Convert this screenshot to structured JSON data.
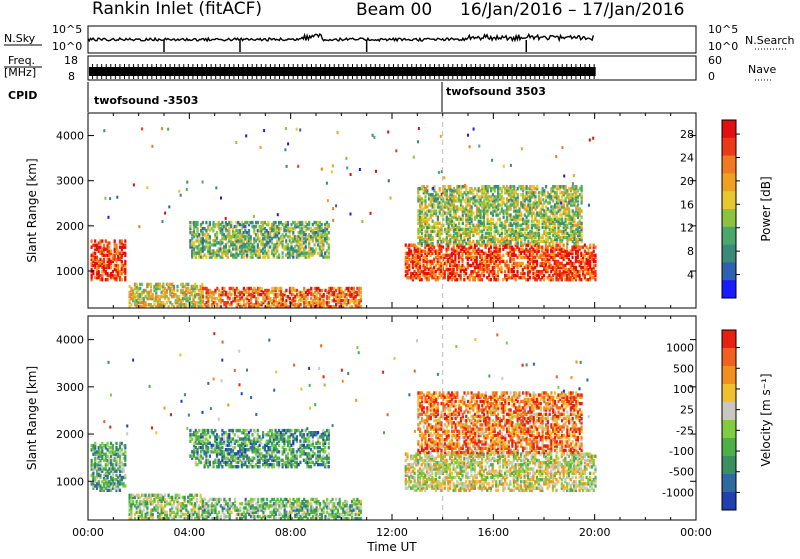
{
  "header": {
    "title": "Rankin Inlet (fitACF)",
    "beam": "Beam 00",
    "date_range": "16/Jan/2016 – 17/Jan/2016"
  },
  "noise_panel": {
    "left_label": "N.Sky",
    "left_ticks": [
      "10^5",
      "10^0"
    ],
    "right_ticks": [
      "10^5",
      "10^0"
    ],
    "right_label": "N.Search"
  },
  "freq_panel": {
    "left_label_line1": "Freq.",
    "left_label_line2": "[MHz]",
    "left_ticks": [
      "18",
      "8"
    ],
    "right_ticks": [
      "60",
      "0"
    ],
    "right_label": "Nave"
  },
  "cpid": {
    "label": "CPID",
    "segments": [
      {
        "name": "twofsound -3503",
        "start_hour": 0
      },
      {
        "name": "twofsound 3503",
        "start_hour": 14
      }
    ]
  },
  "chart_data": [
    {
      "type": "heatmap",
      "name": "Power",
      "ylabel": "Slant Range [km]",
      "xlabel": "Time UT",
      "x_ticks": [
        "00:00",
        "04:00",
        "08:00",
        "12:00",
        "16:00",
        "20:00",
        "00:00"
      ],
      "xlim_hours": [
        0,
        24
      ],
      "ylim": [
        180,
        4500
      ],
      "y_ticks": [
        1000,
        2000,
        3000,
        4000
      ],
      "colorbar_label": "Power [dB]",
      "colorbar_ticks": [
        "4",
        "8",
        "12",
        "16",
        "20",
        "24",
        "28"
      ],
      "colorbar_colors": [
        "#1a1aff",
        "#2e5fb0",
        "#3a8a7a",
        "#4aa86a",
        "#8cc23e",
        "#e8c830",
        "#f0a020",
        "#f07a20",
        "#ec3a18",
        "#e01010"
      ],
      "patches": [
        {
          "t0": 0.1,
          "t1": 1.5,
          "r0": 800,
          "r1": 1700,
          "level": 0.85
        },
        {
          "t0": 1.6,
          "t1": 4.5,
          "r0": 200,
          "r1": 700,
          "level": 0.55
        },
        {
          "t0": 4.5,
          "t1": 10.8,
          "r0": 200,
          "r1": 650,
          "level": 0.75
        },
        {
          "t0": 4.0,
          "t1": 9.5,
          "r0": 1300,
          "r1": 2100,
          "level": 0.4
        },
        {
          "t0": 12.5,
          "t1": 20.0,
          "r0": 800,
          "r1": 1600,
          "level": 0.85
        },
        {
          "t0": 13.0,
          "t1": 19.5,
          "r0": 1600,
          "r1": 2900,
          "level": 0.45
        }
      ]
    },
    {
      "type": "heatmap",
      "name": "Velocity",
      "ylabel": "Slant Range [km]",
      "xlabel": "Time UT",
      "x_ticks": [
        "00:00",
        "04:00",
        "08:00",
        "12:00",
        "16:00",
        "20:00",
        "00:00"
      ],
      "xlim_hours": [
        0,
        24
      ],
      "ylim": [
        180,
        4500
      ],
      "y_ticks": [
        1000,
        2000,
        3000,
        4000
      ],
      "colorbar_label": "Velocity [m s⁻¹]",
      "colorbar_ticks": [
        "1000",
        "500",
        "100",
        "25",
        "-25",
        "-100",
        "-500",
        "-1000"
      ],
      "colorbar_colors": [
        "#2040b0",
        "#2e6aa0",
        "#3a9060",
        "#4cb048",
        "#80cc40",
        "#c8c8c0",
        "#f0c030",
        "#f09020",
        "#f06020",
        "#e82010"
      ],
      "patches": [
        {
          "t0": 0.1,
          "t1": 1.5,
          "r0": 800,
          "r1": 1800,
          "level": 0.35
        },
        {
          "t0": 1.6,
          "t1": 4.5,
          "r0": 200,
          "r1": 700,
          "level": 0.45
        },
        {
          "t0": 4.5,
          "t1": 10.8,
          "r0": 200,
          "r1": 650,
          "level": 0.4
        },
        {
          "t0": 4.0,
          "t1": 9.5,
          "r0": 1300,
          "r1": 2100,
          "level": 0.3
        },
        {
          "t0": 12.5,
          "t1": 20.0,
          "r0": 800,
          "r1": 1600,
          "level": 0.55
        },
        {
          "t0": 13.0,
          "t1": 19.5,
          "r0": 1600,
          "r1": 2900,
          "level": 0.8
        }
      ]
    }
  ]
}
